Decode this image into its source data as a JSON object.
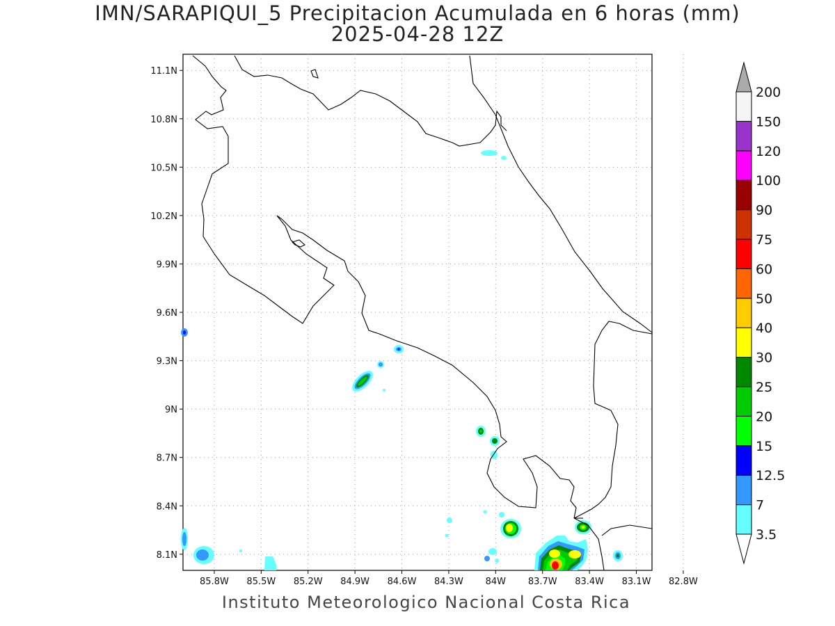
{
  "title": {
    "line1": "IMN/SARAPIQUI_5 Precipitacion Acumulada en 6 horas (mm)",
    "line2": "2025-04-28 12Z"
  },
  "footer": "Instituto Meteorologico Nacional Costa Rica",
  "map": {
    "lon_range": [
      -86.0,
      -83.0
    ],
    "lat_range": [
      8.0,
      11.2
    ],
    "lon_ticks": [
      "85.8W",
      "85.5W",
      "85.2W",
      "84.9W",
      "84.6W",
      "84.3W",
      "84W",
      "83.7W",
      "83.4W",
      "83.1W",
      "82.8W"
    ],
    "lat_ticks": [
      "11.1N",
      "10.8N",
      "10.5N",
      "10.2N",
      "9.9N",
      "9.6N",
      "9.3N",
      "9N",
      "8.7N",
      "8.4N",
      "8.1N"
    ],
    "grid": "dotted"
  },
  "colorbar": {
    "labels": [
      "3.5",
      "7",
      "12.5",
      "15",
      "20",
      "25",
      "30",
      "40",
      "50",
      "60",
      "75",
      "90",
      "100",
      "120",
      "150",
      "200"
    ],
    "colors": [
      "#ffffff",
      "#66ffff",
      "#3399ff",
      "#0000ff",
      "#00ff00",
      "#00cc00",
      "#008800",
      "#ffff00",
      "#ffcc00",
      "#ff6600",
      "#ff0000",
      "#cc3300",
      "#990000",
      "#ff00ff",
      "#9933cc",
      "#f5f5f5",
      "#aaaaaa"
    ]
  },
  "precip_legend": {
    "light": "#66ffff",
    "moderate": "#3399ff",
    "heavy_blue": "#0000ff",
    "green_light": "#00ff00",
    "green": "#00cc00",
    "green_dark": "#008800",
    "yellow": "#ffff00",
    "orange": "#ffcc00",
    "red": "#ff0000"
  }
}
